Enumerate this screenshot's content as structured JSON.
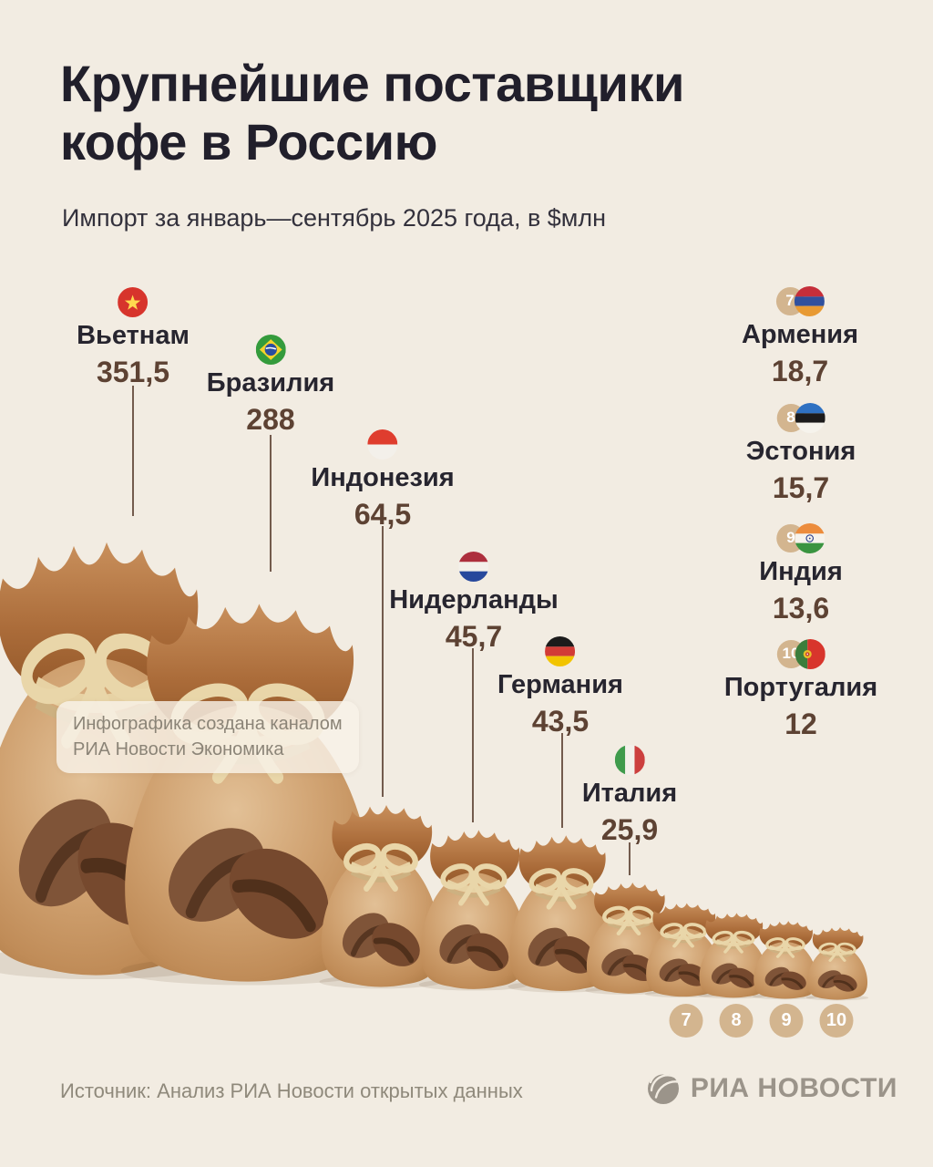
{
  "header": {
    "title_line1": "Крупнейшие поставщики",
    "title_line2": "кофе в Россию",
    "subtitle": "Импорт за январь—сентябрь 2025 года, в $млн"
  },
  "chart_data": {
    "type": "pictorial-bar",
    "title": "Крупнейшие поставщики кофе в Россию",
    "subtitle": "Импорт за январь—сентябрь 2025 года, в $млн",
    "unit": "$млн",
    "period": "январь—сентябрь 2025",
    "layout_hint": "10 coffee bags sorted descending left-to-right, bag size ~ value; labels with circular flags; ranks 7-10 numbered",
    "items": [
      {
        "rank": 1,
        "country": "Вьетнам",
        "value": "351,5",
        "value_num": 351.5,
        "flag": "vn",
        "flag_icon": "vietnam-flag-icon"
      },
      {
        "rank": 2,
        "country": "Бразилия",
        "value": "288",
        "value_num": 288,
        "flag": "br",
        "flag_icon": "brazil-flag-icon"
      },
      {
        "rank": 3,
        "country": "Индонезия",
        "value": "64,5",
        "value_num": 64.5,
        "flag": "id",
        "flag_icon": "indonesia-flag-icon"
      },
      {
        "rank": 4,
        "country": "Нидерланды",
        "value": "45,7",
        "value_num": 45.7,
        "flag": "nl",
        "flag_icon": "netherlands-flag-icon"
      },
      {
        "rank": 5,
        "country": "Германия",
        "value": "43,5",
        "value_num": 43.5,
        "flag": "de",
        "flag_icon": "germany-flag-icon"
      },
      {
        "rank": 6,
        "country": "Италия",
        "value": "25,9",
        "value_num": 25.9,
        "flag": "it",
        "flag_icon": "italy-flag-icon"
      },
      {
        "rank": 7,
        "country": "Армения",
        "value": "18,7",
        "value_num": 18.7,
        "flag": "am",
        "flag_icon": "armenia-flag-icon"
      },
      {
        "rank": 8,
        "country": "Эстония",
        "value": "15,7",
        "value_num": 15.7,
        "flag": "ee",
        "flag_icon": "estonia-flag-icon"
      },
      {
        "rank": 9,
        "country": "Индия",
        "value": "13,6",
        "value_num": 13.6,
        "flag": "in",
        "flag_icon": "india-flag-icon"
      },
      {
        "rank": 10,
        "country": "Португалия",
        "value": "12",
        "value_num": 12,
        "flag": "pt",
        "flag_icon": "portugal-flag-icon"
      }
    ]
  },
  "watermark": {
    "line1": "Инфографика создана каналом",
    "line2": "РИА Новости Экономика"
  },
  "footer": {
    "source": "Источник: Анализ РИА Новости открытых данных",
    "logo_text": "РИА НОВОСТИ"
  },
  "colors": {
    "background": "#f2ece2",
    "title": "#211f2b",
    "subtitle": "#33313c",
    "country": "#27252f",
    "value": "#5d4233",
    "line": "#5d4233",
    "badge": "#d3b58f",
    "muted": "#8f897b",
    "logo": "#9b948a"
  }
}
